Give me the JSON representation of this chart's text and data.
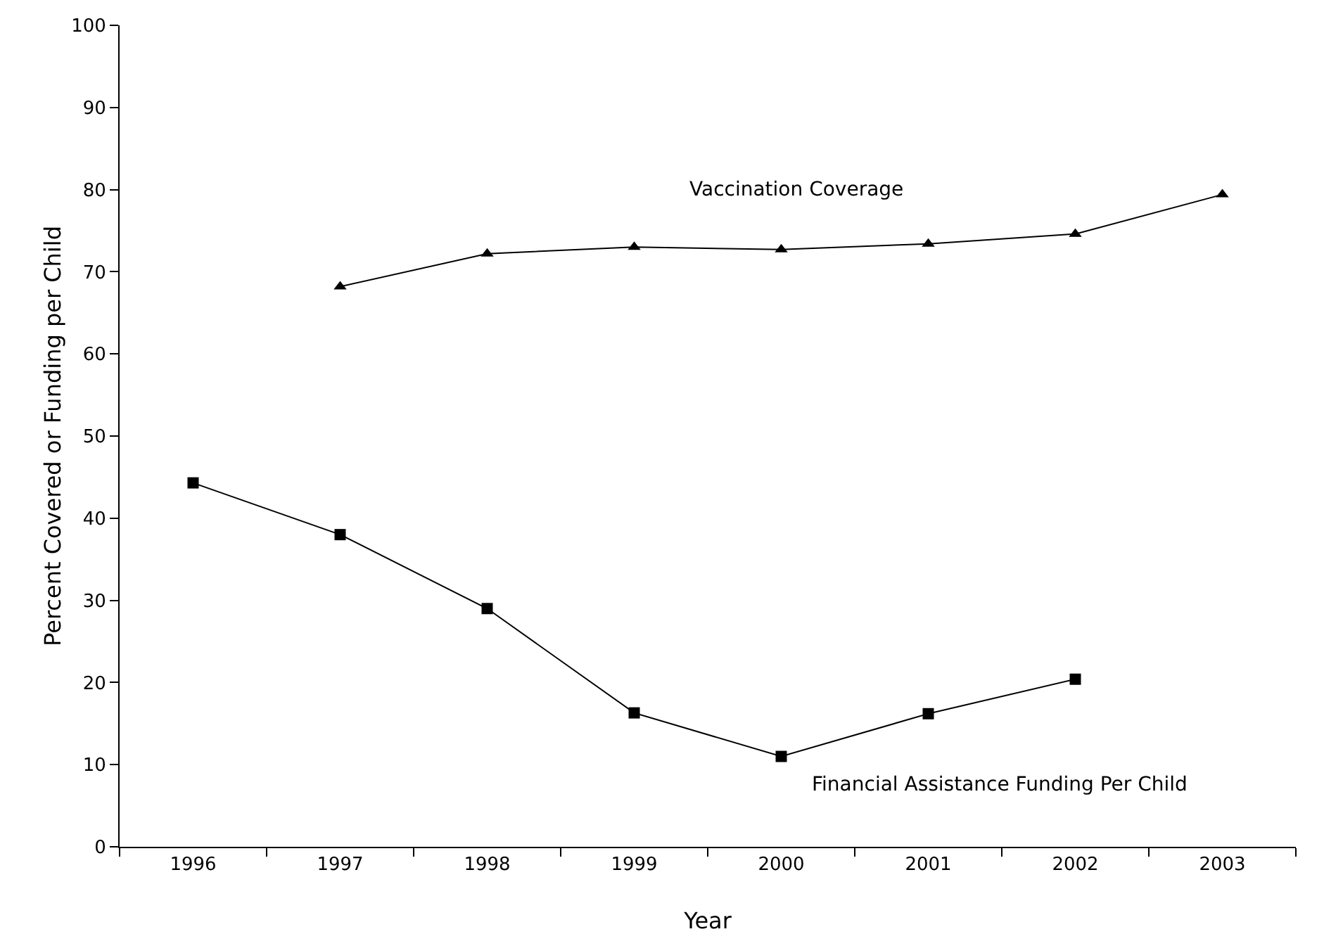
{
  "chart_data": {
    "type": "line",
    "xlabel": "Year",
    "ylabel": "Percent Covered or Funding per Child",
    "categories": [
      "1996",
      "1997",
      "1998",
      "1999",
      "2000",
      "2001",
      "2002",
      "2003"
    ],
    "series": [
      {
        "name": "Vaccination Coverage",
        "color": "#000000",
        "marker": "triangle",
        "values": [
          null,
          68.2,
          72.2,
          73.0,
          72.7,
          73.4,
          74.6,
          79.4
        ]
      },
      {
        "name": "Financial Assistance Funding Per Child",
        "color": "#000000",
        "marker": "square",
        "values": [
          44.3,
          38.0,
          29.0,
          16.3,
          11.0,
          16.2,
          20.4,
          null
        ]
      }
    ],
    "ylim": [
      0,
      100
    ],
    "yticks": [
      0,
      10,
      20,
      30,
      40,
      50,
      60,
      70,
      80,
      90,
      100
    ],
    "grid": false,
    "legend": false,
    "line_style": "solid"
  }
}
